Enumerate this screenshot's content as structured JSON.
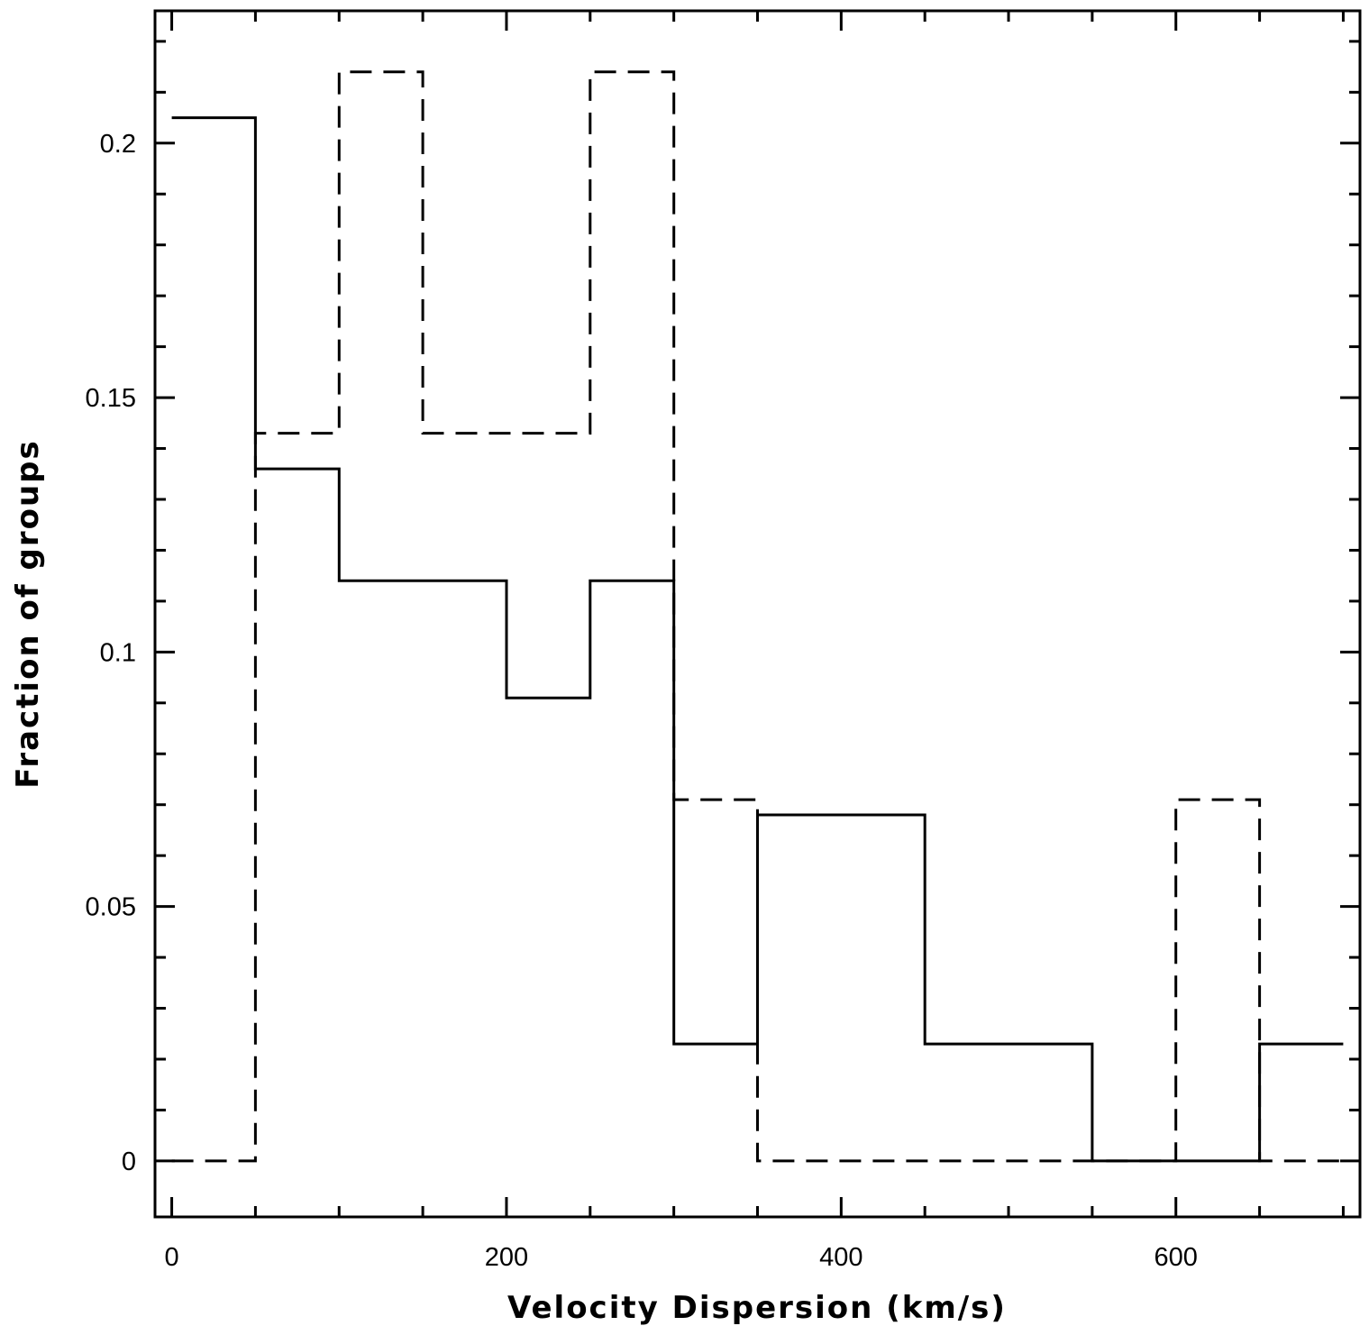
{
  "chart_data": {
    "type": "histogram-step",
    "title": "",
    "xlabel": "Velocity Dispersion (km/s)",
    "ylabel": "Fraction of groups",
    "xlim": [
      -10,
      710
    ],
    "ylim": [
      -0.011,
      0.226
    ],
    "x_ticks": [
      0,
      200,
      400,
      600
    ],
    "x_tick_labels": [
      "0",
      "200",
      "400",
      "600"
    ],
    "y_ticks": [
      0,
      0.05,
      0.1,
      0.15,
      0.2
    ],
    "y_tick_labels": [
      "0",
      "0.05",
      "0.1",
      "0.15",
      "0.2"
    ],
    "bin_edges": [
      0,
      50,
      100,
      150,
      200,
      250,
      300,
      350,
      400,
      450,
      500,
      550,
      600,
      650,
      700
    ],
    "series": [
      {
        "style": "solid",
        "values": [
          0.205,
          0.136,
          0.114,
          0.114,
          0.091,
          0.114,
          0.023,
          0.068,
          0.068,
          0.023,
          0.023,
          0,
          0,
          0.023
        ]
      },
      {
        "style": "dashed",
        "values": [
          0,
          0.143,
          0.214,
          0.143,
          0.143,
          0.214,
          0.071,
          0,
          0,
          0,
          0,
          0,
          0.071,
          0
        ]
      }
    ],
    "grid": false,
    "legend": "none"
  }
}
